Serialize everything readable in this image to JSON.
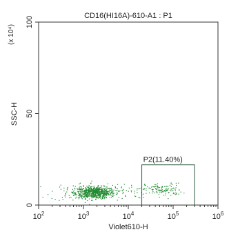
{
  "chart_data": {
    "type": "scatter",
    "title": "CD16(HI16A)-610-A1 : P1",
    "xlabel": "Violet610-H",
    "ylabel": "SSC-H",
    "y_multiplier": "(x 10⁴)",
    "x_scale": "log",
    "xlim": [
      100,
      1000000
    ],
    "ylim": [
      0,
      100
    ],
    "x_ticks": [
      {
        "base": "10",
        "exp": "2",
        "value": 100
      },
      {
        "base": "10",
        "exp": "3",
        "value": 1000
      },
      {
        "base": "10",
        "exp": "4",
        "value": 10000
      },
      {
        "base": "10",
        "exp": "5",
        "value": 100000
      },
      {
        "base": "10",
        "exp": "6",
        "value": 1000000
      }
    ],
    "y_ticks": [
      {
        "label": "0",
        "value": 0
      },
      {
        "label": "50",
        "value": 50
      },
      {
        "label": "100",
        "value": 100
      }
    ],
    "gate": {
      "label": "P2(11.40%)",
      "x_range": [
        20000,
        300000
      ],
      "y_range": [
        0,
        22
      ]
    },
    "point_color": "#1f8a2e",
    "gate_color": "#2a5a3a",
    "populations": [
      {
        "center_x": 1800,
        "center_y": 7,
        "spread_log_x": 0.22,
        "spread_y": 1.6,
        "count": 650
      },
      {
        "center_x": 900,
        "center_y": 7.5,
        "spread_log_x": 0.35,
        "spread_y": 2.5,
        "count": 110
      },
      {
        "center_x": 9000,
        "center_y": 8,
        "spread_log_x": 0.25,
        "spread_y": 2.0,
        "count": 45
      },
      {
        "center_x": 60000,
        "center_y": 8.5,
        "spread_log_x": 0.2,
        "spread_y": 1.8,
        "count": 120
      }
    ]
  }
}
